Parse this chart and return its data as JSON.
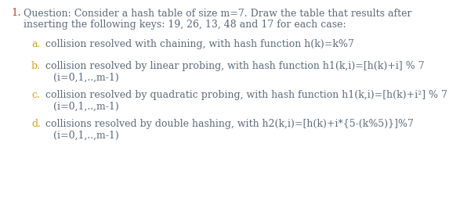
{
  "bg_color": "#ffffff",
  "number_color": "#c0392b",
  "number_text": "1.",
  "body_color": "#5a6a7a",
  "letter_color": "#d4a017",
  "title_line1": "Question: Consider a hash table of size m=7. Draw the table that results after",
  "title_line2": "inserting the following keys: 19, 26, 13, 48 and 17 for each case:",
  "items": [
    {
      "letter": "a.",
      "text": "collision resolved with chaining, with hash function h(k)=k%7",
      "line2": null
    },
    {
      "letter": "b.",
      "text": "collision resolved by linear probing, with hash function h1(k,i)=[h(k)+i] % 7",
      "line2": "(i=0,1,..,m-1)"
    },
    {
      "letter": "c.",
      "text": "collision resolved by quadratic probing, with hash function h1(k,i)=[h(k)+i²] % 7",
      "line2": "(i=0,1,..,m-1)"
    },
    {
      "letter": "d.",
      "text": "collisions resolved by double hashing, with h2(k,i)=[h(k)+i*{5-(k%5)}]%7",
      "line2": "(i=0,1,..,m-1)"
    }
  ],
  "title_fs": 9.0,
  "item_fs": 9.0,
  "num_fs": 9.5,
  "fig_width": 5.73,
  "fig_height": 2.57,
  "dpi": 100
}
